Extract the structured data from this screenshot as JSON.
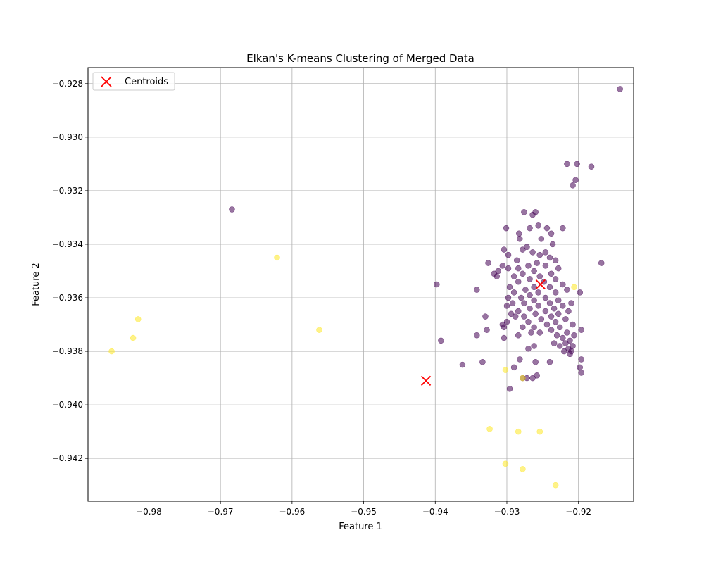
{
  "chart_data": {
    "type": "scatter",
    "title": "Elkan's K-means Clustering of Merged Data",
    "xlabel": "Feature 1",
    "ylabel": "Feature 2",
    "xlim": [
      -0.9885,
      -0.9123
    ],
    "ylim": [
      -0.9436,
      -0.9274
    ],
    "xticks": [
      -0.98,
      -0.97,
      -0.96,
      -0.95,
      -0.94,
      -0.93,
      -0.92
    ],
    "xtick_labels": [
      "−0.98",
      "−0.97",
      "−0.96",
      "−0.95",
      "−0.94",
      "−0.93",
      "−0.92"
    ],
    "yticks": [
      -0.928,
      -0.93,
      -0.932,
      -0.934,
      -0.936,
      -0.938,
      -0.94,
      -0.942
    ],
    "ytick_labels": [
      "−0.928",
      "−0.930",
      "−0.932",
      "−0.934",
      "−0.936",
      "−0.938",
      "−0.940",
      "−0.942"
    ],
    "grid": true,
    "legend": {
      "position": "top-left",
      "entries": [
        "Centroids"
      ]
    },
    "colors": {
      "cluster_0": "#440154",
      "cluster_1": "#fde725",
      "centroid": "#ff0000"
    },
    "series": [
      {
        "cluster": 0,
        "points": [
          [
            -0.9142,
            -0.9282
          ],
          [
            -0.9216,
            -0.931
          ],
          [
            -0.9202,
            -0.931
          ],
          [
            -0.9182,
            -0.9311
          ],
          [
            -0.9204,
            -0.9316
          ],
          [
            -0.9208,
            -0.9318
          ],
          [
            -0.9684,
            -0.9327
          ],
          [
            -0.926,
            -0.9328
          ],
          [
            -0.9276,
            -0.9328
          ],
          [
            -0.9264,
            -0.9329
          ],
          [
            -0.9256,
            -0.9333
          ],
          [
            -0.9244,
            -0.9334
          ],
          [
            -0.9268,
            -0.9334
          ],
          [
            -0.9301,
            -0.9334
          ],
          [
            -0.9222,
            -0.9334
          ],
          [
            -0.9283,
            -0.9336
          ],
          [
            -0.9238,
            -0.9336
          ],
          [
            -0.9252,
            -0.9338
          ],
          [
            -0.9282,
            -0.9338
          ],
          [
            -0.9236,
            -0.934
          ],
          [
            -0.9272,
            -0.9341
          ],
          [
            -0.9304,
            -0.9342
          ],
          [
            -0.9278,
            -0.9342
          ],
          [
            -0.9246,
            -0.9343
          ],
          [
            -0.9298,
            -0.9344
          ],
          [
            -0.9264,
            -0.9343
          ],
          [
            -0.9254,
            -0.9344
          ],
          [
            -0.924,
            -0.9345
          ],
          [
            -0.9232,
            -0.9346
          ],
          [
            -0.9286,
            -0.9346
          ],
          [
            -0.9326,
            -0.9347
          ],
          [
            -0.9168,
            -0.9347
          ],
          [
            -0.9258,
            -0.9347
          ],
          [
            -0.927,
            -0.9348
          ],
          [
            -0.9246,
            -0.9348
          ],
          [
            -0.9306,
            -0.9348
          ],
          [
            -0.9298,
            -0.9349
          ],
          [
            -0.9228,
            -0.9349
          ],
          [
            -0.9284,
            -0.9349
          ],
          [
            -0.9312,
            -0.935
          ],
          [
            -0.9262,
            -0.935
          ],
          [
            -0.9238,
            -0.9351
          ],
          [
            -0.9278,
            -0.9351
          ],
          [
            -0.9254,
            -0.9352
          ],
          [
            -0.929,
            -0.9352
          ],
          [
            -0.9232,
            -0.9353
          ],
          [
            -0.9314,
            -0.9352
          ],
          [
            -0.9268,
            -0.9353
          ],
          [
            -0.9248,
            -0.9354
          ],
          [
            -0.9284,
            -0.9354
          ],
          [
            -0.9222,
            -0.9355
          ],
          [
            -0.9398,
            -0.9355
          ],
          [
            -0.9262,
            -0.9356
          ],
          [
            -0.9296,
            -0.9356
          ],
          [
            -0.924,
            -0.9356
          ],
          [
            -0.9274,
            -0.9357
          ],
          [
            -0.9216,
            -0.9357
          ],
          [
            -0.9342,
            -0.9357
          ],
          [
            -0.9256,
            -0.9358
          ],
          [
            -0.929,
            -0.9358
          ],
          [
            -0.9232,
            -0.9358
          ],
          [
            -0.9268,
            -0.9359
          ],
          [
            -0.9198,
            -0.9358
          ],
          [
            -0.9246,
            -0.936
          ],
          [
            -0.928,
            -0.936
          ],
          [
            -0.9298,
            -0.936
          ],
          [
            -0.9228,
            -0.9361
          ],
          [
            -0.9262,
            -0.9361
          ],
          [
            -0.921,
            -0.9362
          ],
          [
            -0.924,
            -0.9362
          ],
          [
            -0.9276,
            -0.9362
          ],
          [
            -0.9292,
            -0.9362
          ],
          [
            -0.9222,
            -0.9363
          ],
          [
            -0.9256,
            -0.9363
          ],
          [
            -0.93,
            -0.9363
          ],
          [
            -0.9234,
            -0.9364
          ],
          [
            -0.9268,
            -0.9364
          ],
          [
            -0.9284,
            -0.9365
          ],
          [
            -0.9246,
            -0.9365
          ],
          [
            -0.9214,
            -0.9365
          ],
          [
            -0.9294,
            -0.9366
          ],
          [
            -0.926,
            -0.9366
          ],
          [
            -0.9228,
            -0.9366
          ],
          [
            -0.9276,
            -0.9367
          ],
          [
            -0.9238,
            -0.9367
          ],
          [
            -0.9288,
            -0.9367
          ],
          [
            -0.933,
            -0.9367
          ],
          [
            -0.9218,
            -0.9368
          ],
          [
            -0.9252,
            -0.9368
          ],
          [
            -0.927,
            -0.9369
          ],
          [
            -0.9232,
            -0.9369
          ],
          [
            -0.93,
            -0.9369
          ],
          [
            -0.9208,
            -0.937
          ],
          [
            -0.9244,
            -0.937
          ],
          [
            -0.9262,
            -0.9371
          ],
          [
            -0.9226,
            -0.9371
          ],
          [
            -0.9278,
            -0.9371
          ],
          [
            -0.9304,
            -0.9371
          ],
          [
            -0.9196,
            -0.9372
          ],
          [
            -0.9238,
            -0.9372
          ],
          [
            -0.9216,
            -0.9373
          ],
          [
            -0.9254,
            -0.9373
          ],
          [
            -0.9328,
            -0.9372
          ],
          [
            -0.9266,
            -0.9373
          ],
          [
            -0.923,
            -0.9374
          ],
          [
            -0.9206,
            -0.9374
          ],
          [
            -0.9284,
            -0.9374
          ],
          [
            -0.9342,
            -0.9374
          ],
          [
            -0.9304,
            -0.9375
          ],
          [
            -0.9222,
            -0.9375
          ],
          [
            -0.9212,
            -0.9376
          ],
          [
            -0.9392,
            -0.9376
          ],
          [
            -0.9234,
            -0.9377
          ],
          [
            -0.9218,
            -0.9377
          ],
          [
            -0.9208,
            -0.9378
          ],
          [
            -0.9262,
            -0.9378
          ],
          [
            -0.9226,
            -0.9378
          ],
          [
            -0.9214,
            -0.9379
          ],
          [
            -0.927,
            -0.9379
          ],
          [
            -0.921,
            -0.938
          ],
          [
            -0.922,
            -0.938
          ],
          [
            -0.9212,
            -0.9381
          ],
          [
            -0.9196,
            -0.9383
          ],
          [
            -0.9282,
            -0.9383
          ],
          [
            -0.9334,
            -0.9384
          ],
          [
            -0.924,
            -0.9384
          ],
          [
            -0.926,
            -0.9384
          ],
          [
            -0.9362,
            -0.9385
          ],
          [
            -0.9198,
            -0.9386
          ],
          [
            -0.929,
            -0.9386
          ],
          [
            -0.9196,
            -0.9388
          ],
          [
            -0.9258,
            -0.9389
          ],
          [
            -0.9278,
            -0.939
          ],
          [
            -0.9264,
            -0.939
          ],
          [
            -0.9272,
            -0.939
          ],
          [
            -0.9296,
            -0.9394
          ],
          [
            -0.9306,
            -0.937
          ],
          [
            -0.9318,
            -0.9351
          ]
        ]
      },
      {
        "cluster": 1,
        "points": [
          [
            -0.9621,
            -0.9345
          ],
          [
            -0.9206,
            -0.9356
          ],
          [
            -0.9815,
            -0.9368
          ],
          [
            -0.9562,
            -0.9372
          ],
          [
            -0.9822,
            -0.9375
          ],
          [
            -0.9852,
            -0.938
          ],
          [
            -0.9302,
            -0.9387
          ],
          [
            -0.9278,
            -0.939
          ],
          [
            -0.9324,
            -0.9409
          ],
          [
            -0.9284,
            -0.941
          ],
          [
            -0.9254,
            -0.941
          ],
          [
            -0.9302,
            -0.9422
          ],
          [
            -0.9278,
            -0.9424
          ],
          [
            -0.9232,
            -0.943
          ]
        ]
      }
    ],
    "centroids": [
      [
        -0.9253,
        -0.9355
      ],
      [
        -0.9413,
        -0.9391
      ]
    ]
  }
}
